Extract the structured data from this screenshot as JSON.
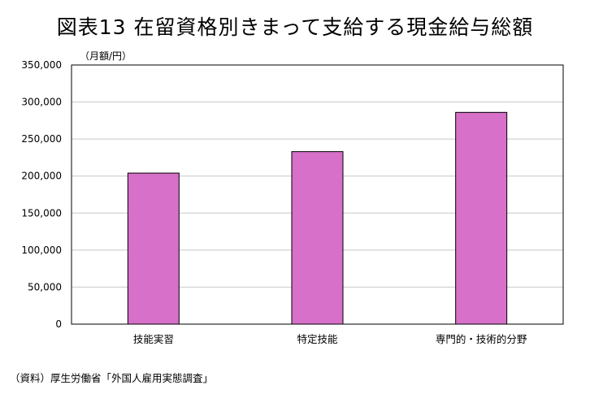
{
  "chart_data": {
    "type": "bar",
    "title": "図表13 在留資格別きまって支給する現金給与総額",
    "ylabel": "（月額/円）",
    "xlabel": "",
    "categories": [
      "技能実習",
      "特定技能",
      "専門的・技術的分野"
    ],
    "values": [
      204000,
      233000,
      286000
    ],
    "ylim": [
      0,
      350000
    ],
    "yticks": [
      0,
      50000,
      100000,
      150000,
      200000,
      250000,
      300000,
      350000
    ],
    "ytick_labels": [
      "0",
      "50,000",
      "100,000",
      "150,000",
      "200,000",
      "250,000",
      "300,000",
      "350,000"
    ],
    "grid": true,
    "legend": "none",
    "colors": {
      "bar_fill": "#d670c8",
      "bar_stroke": "#000000",
      "grid": "#c8c8c8",
      "frame": "#000000"
    }
  },
  "source": "（資料）厚生労働省「外国人雇用実態調査」"
}
